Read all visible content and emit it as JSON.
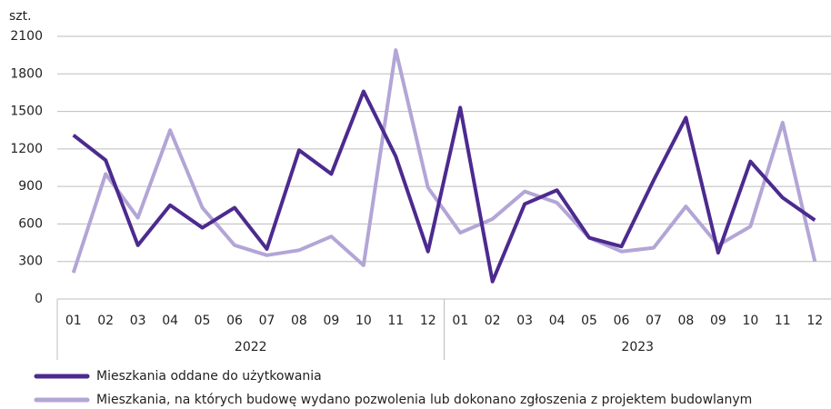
{
  "chart_data": {
    "type": "line",
    "y_unit": "szt.",
    "categories": [
      "01",
      "02",
      "03",
      "04",
      "05",
      "06",
      "07",
      "08",
      "09",
      "10",
      "11",
      "12",
      "01",
      "02",
      "03",
      "04",
      "05",
      "06",
      "07",
      "08",
      "09",
      "10",
      "11",
      "12"
    ],
    "groups": [
      "2022",
      "2023"
    ],
    "series": [
      {
        "name": "Mieszkania oddane do użytkowania",
        "color": "#4c2a8f",
        "values": [
          1310,
          1110,
          430,
          750,
          570,
          730,
          400,
          1190,
          1000,
          1660,
          1140,
          380,
          1530,
          140,
          760,
          870,
          490,
          420,
          950,
          1450,
          370,
          1100,
          810,
          630
        ]
      },
      {
        "name": "Mieszkania, na których budowę wydano pozwolenia lub dokonano zgłoszenia z projektem budowlanym",
        "color": "#b3a5d6",
        "values": [
          210,
          1000,
          650,
          1350,
          730,
          430,
          350,
          390,
          500,
          270,
          1990,
          890,
          530,
          640,
          860,
          770,
          490,
          380,
          410,
          740,
          430,
          580,
          1410,
          300
        ]
      }
    ],
    "ylim": [
      0,
      2100
    ],
    "yticks": [
      0,
      300,
      600,
      900,
      1200,
      1500,
      1800,
      2100
    ],
    "grid": true
  }
}
